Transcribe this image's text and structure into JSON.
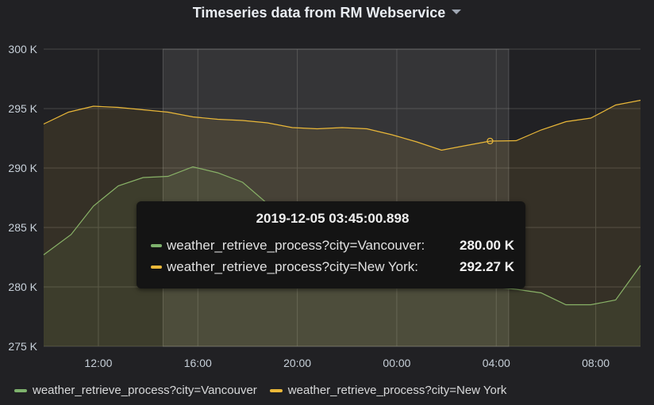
{
  "panel": {
    "title": "Timeseries data from RM Webservice",
    "dropdown_icon": "caret-down-icon"
  },
  "colors": {
    "vancouver": "#7eb26d",
    "newyork": "#eab839",
    "grid": "#464646",
    "selection": "#5a5a5a"
  },
  "chart_data": {
    "type": "area",
    "title": "Timeseries data from RM Webservice",
    "ylim": [
      275,
      300
    ],
    "y_ticks": [
      "275 K",
      "280 K",
      "285 K",
      "290 K",
      "295 K",
      "300 K"
    ],
    "x_ticks": [
      "12:00",
      "16:00",
      "20:00",
      "00:00",
      "04:00",
      "08:00"
    ],
    "xlim": [
      "2019-12-04 09:48",
      "2019-12-05 09:48"
    ],
    "grid": true,
    "legend_position": "bottom",
    "selection_range": [
      "2019-12-04 14:36",
      "2019-12-05 04:30"
    ],
    "series": [
      {
        "name": "weather_retrieve_process?city=Vancouver",
        "color": "#7eb26d",
        "points": [
          [
            "2019-12-04 09:48",
            282.7
          ],
          [
            "2019-12-04 10:54",
            284.4
          ],
          [
            "2019-12-04 11:48",
            286.8
          ],
          [
            "2019-12-04 12:48",
            288.5
          ],
          [
            "2019-12-04 13:48",
            289.2
          ],
          [
            "2019-12-04 14:48",
            289.3
          ],
          [
            "2019-12-04 15:48",
            290.1
          ],
          [
            "2019-12-04 16:48",
            289.6
          ],
          [
            "2019-12-04 17:48",
            288.8
          ],
          [
            "2019-12-04 18:48",
            287.0
          ],
          [
            "2019-12-05 03:48",
            280.0
          ],
          [
            "2019-12-05 04:48",
            279.8
          ],
          [
            "2019-12-05 05:48",
            279.5
          ],
          [
            "2019-12-05 06:48",
            278.5
          ],
          [
            "2019-12-05 07:48",
            278.5
          ],
          [
            "2019-12-05 08:48",
            278.9
          ],
          [
            "2019-12-05 09:48",
            281.8
          ]
        ]
      },
      {
        "name": "weather_retrieve_process?city=New York",
        "color": "#eab839",
        "points": [
          [
            "2019-12-04 09:48",
            293.7
          ],
          [
            "2019-12-04 10:48",
            294.7
          ],
          [
            "2019-12-04 11:48",
            295.2
          ],
          [
            "2019-12-04 12:48",
            295.1
          ],
          [
            "2019-12-04 13:48",
            294.9
          ],
          [
            "2019-12-04 14:48",
            294.7
          ],
          [
            "2019-12-04 15:48",
            294.3
          ],
          [
            "2019-12-04 16:48",
            294.1
          ],
          [
            "2019-12-04 17:48",
            294.0
          ],
          [
            "2019-12-04 18:48",
            293.8
          ],
          [
            "2019-12-04 19:48",
            293.4
          ],
          [
            "2019-12-04 20:48",
            293.3
          ],
          [
            "2019-12-04 21:48",
            293.4
          ],
          [
            "2019-12-04 22:48",
            293.3
          ],
          [
            "2019-12-04 23:48",
            292.8
          ],
          [
            "2019-12-05 00:48",
            292.2
          ],
          [
            "2019-12-05 01:48",
            291.5
          ],
          [
            "2019-12-05 02:48",
            291.9
          ],
          [
            "2019-12-05 03:45",
            292.27
          ],
          [
            "2019-12-05 04:48",
            292.3
          ],
          [
            "2019-12-05 05:48",
            293.2
          ],
          [
            "2019-12-05 06:48",
            293.9
          ],
          [
            "2019-12-05 07:48",
            294.2
          ],
          [
            "2019-12-05 08:48",
            295.3
          ],
          [
            "2019-12-05 09:48",
            295.7
          ]
        ]
      }
    ]
  },
  "tooltip": {
    "time": "2019-12-05 03:45:00.898",
    "rows": [
      {
        "name": "weather_retrieve_process?city=Vancouver:",
        "value": "280.00 K",
        "color": "#7eb26d"
      },
      {
        "name": "weather_retrieve_process?city=New York:",
        "value": "292.27 K",
        "color": "#eab839"
      }
    ]
  },
  "legend": [
    {
      "label": "weather_retrieve_process?city=Vancouver",
      "color": "#7eb26d"
    },
    {
      "label": "weather_retrieve_process?city=New York",
      "color": "#eab839"
    }
  ]
}
